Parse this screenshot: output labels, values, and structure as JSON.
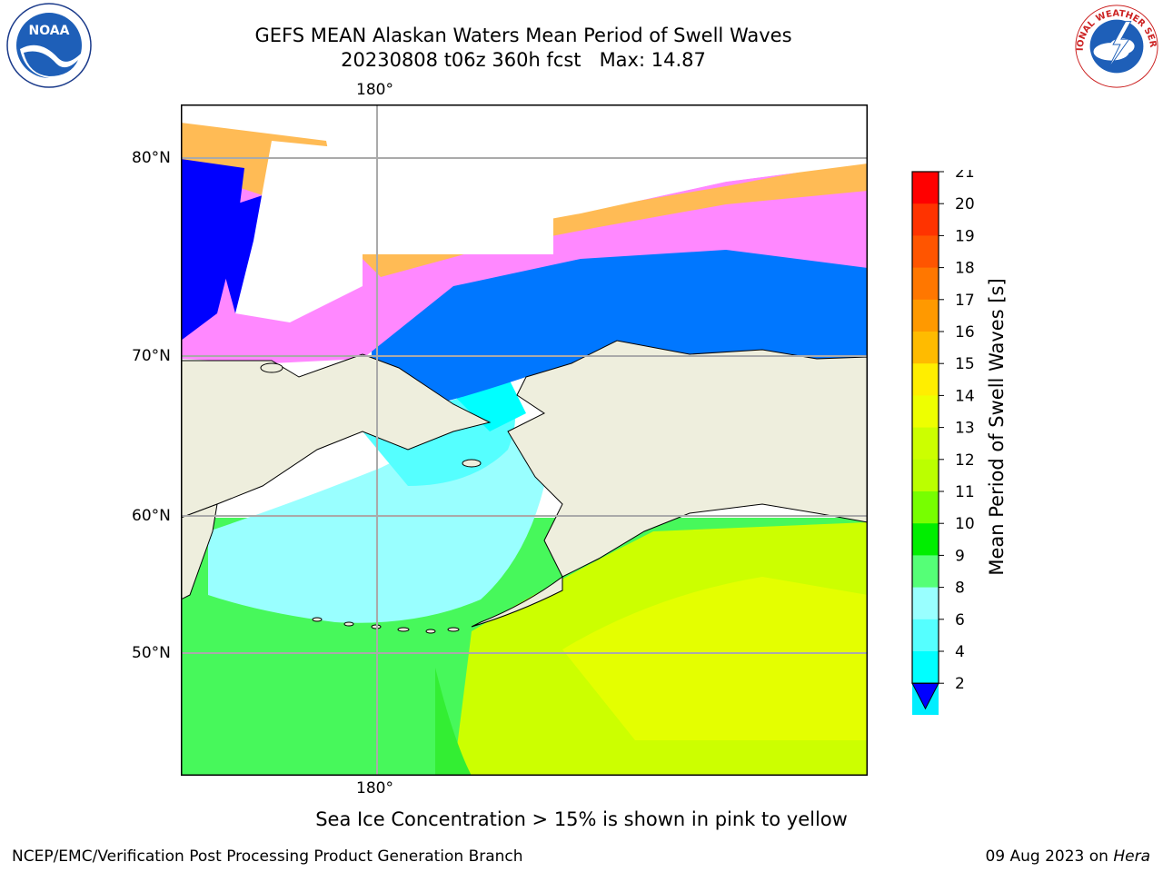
{
  "title": {
    "line1": "GEFS MEAN Alaskan Waters Mean Period of Swell Waves",
    "line2": "20230808 t06z 360h fcst   Max: 14.87"
  },
  "map": {
    "lat_labels": [
      "80°N",
      "70°N",
      "60°N",
      "50°N"
    ],
    "lon_label_top": "180°",
    "lon_label_bottom": "180°",
    "colors": {
      "land": "#eeeedd",
      "ice_pink": "#ff88ff",
      "ice_orange": "#ffbb55",
      "swell_2_4": "#0077ff",
      "swell_lt2": "#0000ff",
      "swell_4_6": "#00ffff",
      "swell_6_8": "#33ffff",
      "swell_8_9": "#99ffff",
      "swell_9_10": "#55ff77",
      "swell_10_11": "#33ee33",
      "swell_12_13": "#ccff00",
      "swell_13_14": "#eeff00"
    }
  },
  "colorbar": {
    "label": "Mean Period of Swell Waves [s]",
    "ticks": [
      "21",
      "20",
      "19",
      "18",
      "17",
      "16",
      "15",
      "14",
      "13",
      "12",
      "11",
      "10",
      "9",
      "8",
      "6",
      "4",
      "2"
    ],
    "colors": [
      "#ff0000",
      "#ff3300",
      "#ff5500",
      "#ff7700",
      "#ff9900",
      "#ffbb00",
      "#ffee00",
      "#eeff00",
      "#ccff00",
      "#bbff00",
      "#77ff00",
      "#00ee00",
      "#55ff77",
      "#99ffff",
      "#55ffff",
      "#00ffff",
      "#00eeff",
      "#0077ff"
    ],
    "under_color": "#0000ff"
  },
  "note": "Sea Ice Concentration > 15% is shown in pink to yellow",
  "footer": {
    "left": "NCEP/EMC/Verification Post Processing Product Generation Branch",
    "right_date": "09 Aug 2023 on ",
    "right_host": "Hera"
  },
  "logos": {
    "noaa_text": "NOAA",
    "nws_text": "NATIONAL WEATHER SERVICE"
  }
}
